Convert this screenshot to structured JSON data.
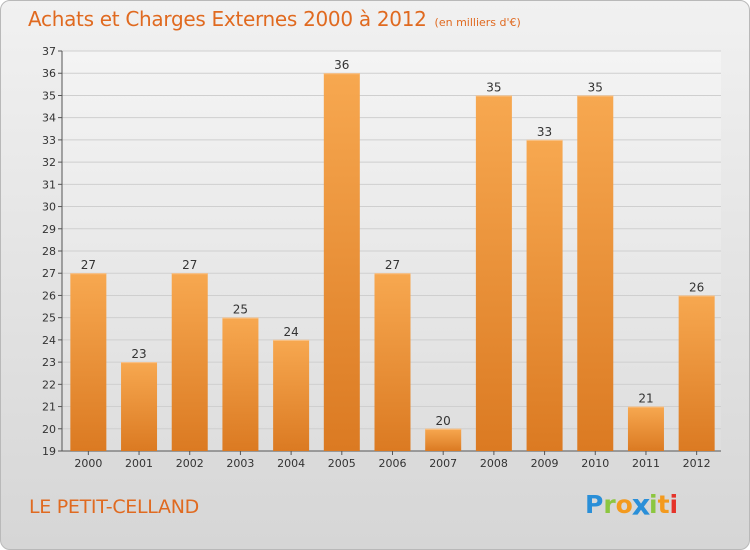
{
  "title": "Achats et Charges Externes 2000 à 2012",
  "subtitle": "(en milliers d'€)",
  "commune": "LE PETIT-CELLAND",
  "logo": {
    "text": "Proxiti",
    "letters": [
      {
        "char": "P",
        "color": "#2a8fd8"
      },
      {
        "char": "r",
        "color": "#8cc63f"
      },
      {
        "char": "o",
        "color": "#f39a1e"
      },
      {
        "char": "x",
        "color": "#2a8fd8"
      },
      {
        "char": "i",
        "color": "#8cc63f"
      },
      {
        "char": "t",
        "color": "#f39a1e"
      },
      {
        "char": "i",
        "color": "#e5332a"
      }
    ]
  },
  "colors": {
    "accent": "#e06a20",
    "bar_top": "#f7a850",
    "bar_bottom": "#db7a22",
    "grid": "#cfcfcf"
  },
  "chart_data": {
    "type": "bar",
    "title": "Achats et Charges Externes 2000 à 2012",
    "subtitle": "(en milliers d'€)",
    "categories": [
      "2000",
      "2001",
      "2002",
      "2003",
      "2004",
      "2005",
      "2006",
      "2007",
      "2008",
      "2009",
      "2010",
      "2011",
      "2012"
    ],
    "values": [
      27,
      23,
      27,
      25,
      24,
      36,
      27,
      20,
      35,
      33,
      35,
      21,
      26
    ],
    "ylim": [
      19,
      37
    ],
    "yticks": [
      19,
      20,
      21,
      22,
      23,
      24,
      25,
      26,
      27,
      28,
      29,
      30,
      31,
      32,
      33,
      34,
      35,
      36,
      37
    ],
    "grid": true,
    "data_labels": true
  }
}
